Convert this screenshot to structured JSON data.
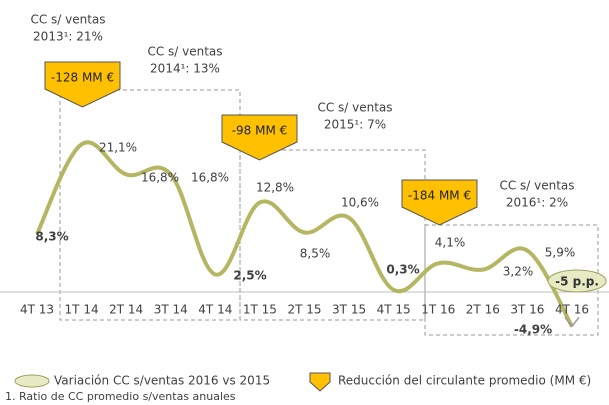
{
  "chart_data": {
    "type": "line",
    "categories": [
      "4T 13",
      "1T 14",
      "2T 14",
      "3T 14",
      "4T 14",
      "1T 15",
      "2T 15",
      "3T 15",
      "4T 15",
      "1T 16",
      "2T 16",
      "3T 16",
      "4T 16"
    ],
    "values": [
      8.3,
      21.1,
      16.8,
      16.8,
      2.5,
      12.8,
      8.5,
      10.6,
      0.3,
      4.1,
      3.2,
      5.9,
      -4.9
    ],
    "value_labels": [
      "8,3%",
      "21,1%",
      "16,8%",
      "16,8%",
      "2,5%",
      "12,8%",
      "8,5%",
      "10,6%",
      "0,3%",
      "4,1%",
      "3,2%",
      "5,9%",
      "-4,9%"
    ],
    "color": "#b5b562",
    "annotations": [
      {
        "lines": [
          "CC s/ ventas",
          "2013¹: 21%"
        ]
      },
      {
        "lines": [
          "CC s/ ventas",
          "2014¹: 13%"
        ]
      },
      {
        "lines": [
          "CC s/ ventas",
          "2015¹: 7%"
        ]
      },
      {
        "lines": [
          "CC s/ ventas",
          "2016¹: 2%"
        ]
      }
    ],
    "reductions": [
      "-128 MM €",
      "-98 MM €",
      "-184 MM €"
    ],
    "variation_label": "-5 p.p.",
    "legend": [
      "Variación CC s/ventas 2016 vs 2015",
      "Reducción del circulante promedio (MM €)"
    ],
    "footnote": "1. Ratio de CC promedio s/ventas anuales"
  }
}
